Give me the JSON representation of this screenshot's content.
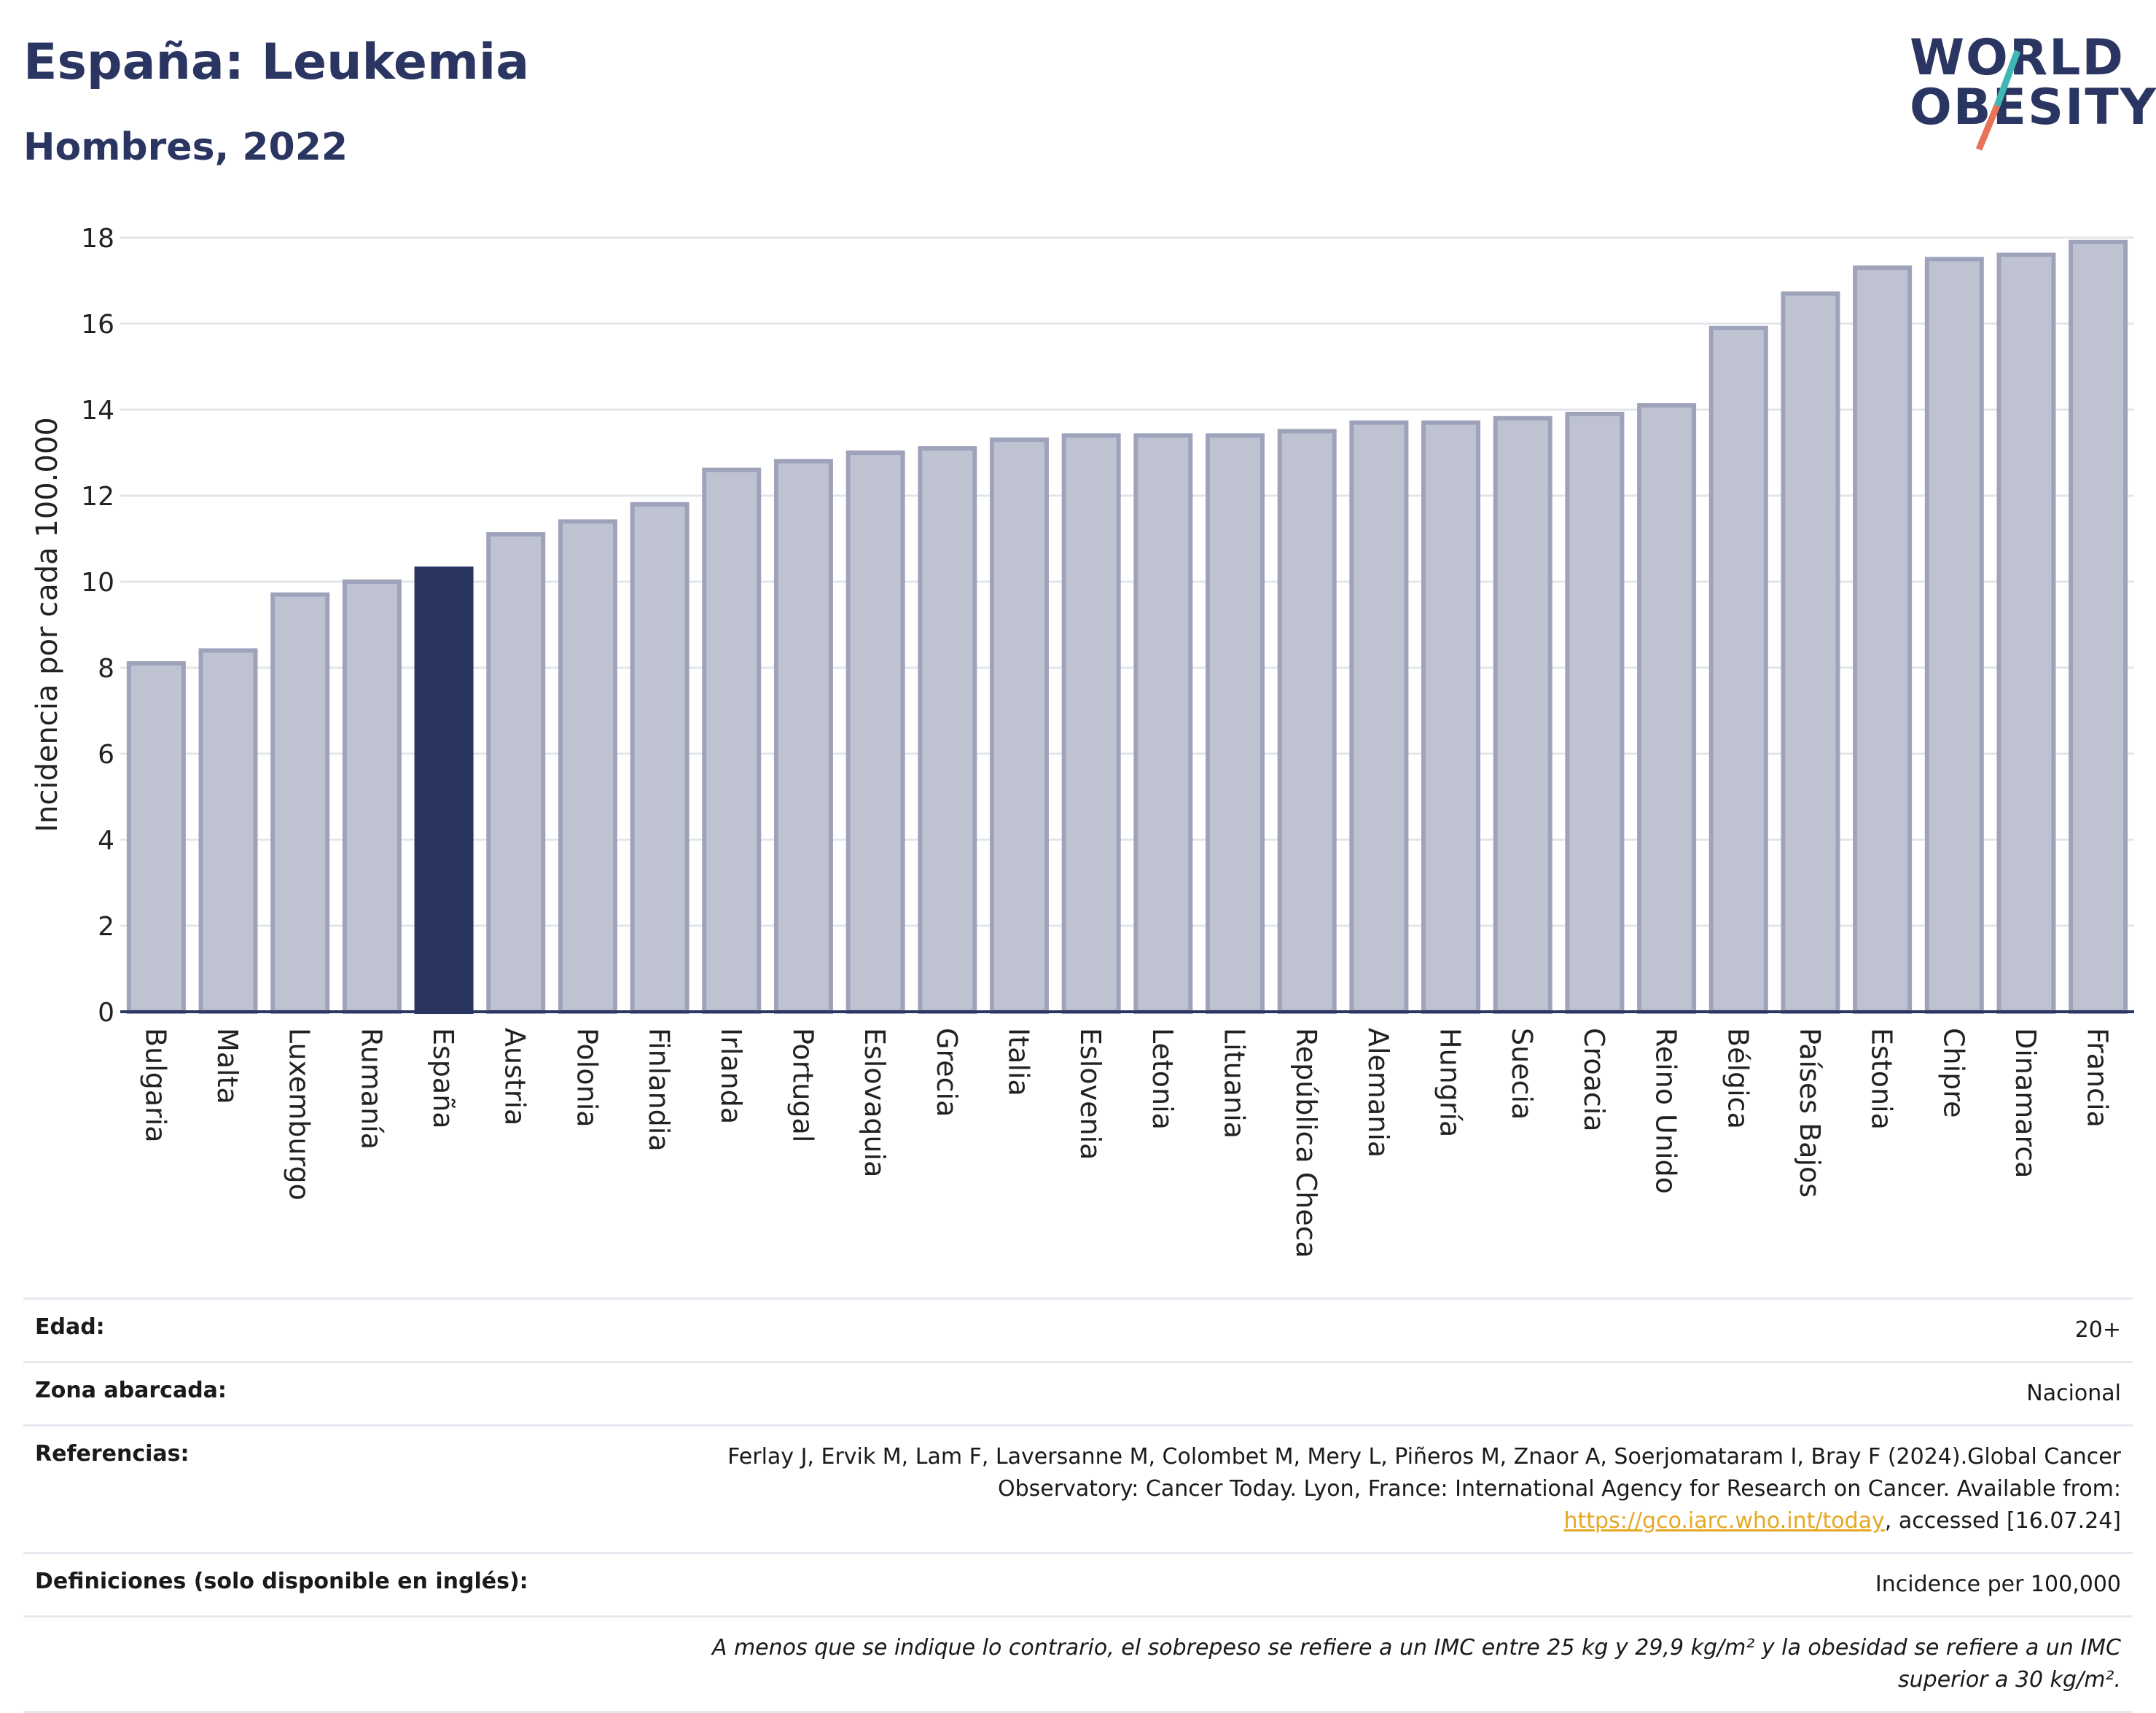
{
  "header": {
    "title": "España: Leukemia",
    "subtitle": "Hombres, 2022"
  },
  "logo": {
    "line1": "WORLD",
    "line2": "OBESITY"
  },
  "colors": {
    "highlight": "#2b3561",
    "bar_fill": "#bfc3d1",
    "bar_stroke": "#9ea3bb",
    "grid": "#e3e5ea",
    "link": "#e5a823",
    "logo_teal": "#3fb8b3",
    "logo_coral": "#e8735a"
  },
  "chart_data": {
    "type": "bar",
    "title": "",
    "ylabel": "Incidencia por cada 100.000",
    "xlabel": "",
    "ylim": [
      0,
      18
    ],
    "yticks": [
      0,
      2,
      4,
      6,
      8,
      10,
      12,
      14,
      16,
      18
    ],
    "grid": true,
    "highlight": "España",
    "categories": [
      "Bulgaria",
      "Malta",
      "Luxemburgo",
      "Rumanía",
      "España",
      "Austria",
      "Polonia",
      "Finlandia",
      "Irlanda",
      "Portugal",
      "Eslovaquia",
      "Grecia",
      "Italia",
      "Eslovenia",
      "Letonia",
      "Lituania",
      "República Checa",
      "Alemania",
      "Hungría",
      "Suecia",
      "Croacia",
      "Reino Unido",
      "Bélgica",
      "Países Bajos",
      "Estonia",
      "Chipre",
      "Dinamarca",
      "Francia"
    ],
    "values": [
      8.1,
      8.4,
      9.7,
      10.0,
      10.3,
      11.1,
      11.4,
      11.8,
      12.6,
      12.8,
      13.0,
      13.1,
      13.3,
      13.4,
      13.4,
      13.4,
      13.5,
      13.7,
      13.7,
      13.8,
      13.9,
      14.1,
      15.9,
      16.7,
      17.3,
      17.5,
      17.6,
      17.9
    ]
  },
  "info": {
    "edad_label": "Edad:",
    "edad_value": "20+",
    "zona_label": "Zona abarcada:",
    "zona_value": "Nacional",
    "ref_label": "Referencias:",
    "ref_text_1": "Ferlay J, Ervik M, Lam F, Laversanne M, Colombet M, Mery L, Piñeros M, Znaor A, Soerjomataram I, Bray F (2024).Global Cancer Observatory: Cancer Today. Lyon, France: International Agency for Research on Cancer. Available from: ",
    "ref_link": "https://gco.iarc.who.int/today",
    "ref_text_2": ", accessed [16.07.24]",
    "def_label": "Definiciones (solo disponible en inglés):",
    "def_value": "Incidence per 100,000",
    "note": "A menos que se indique lo contrario, el sobrepeso se refiere a un IMC entre 25 kg y 29,9 kg/m² y la obesidad se refiere a un IMC superior a 30 kg/m²."
  }
}
